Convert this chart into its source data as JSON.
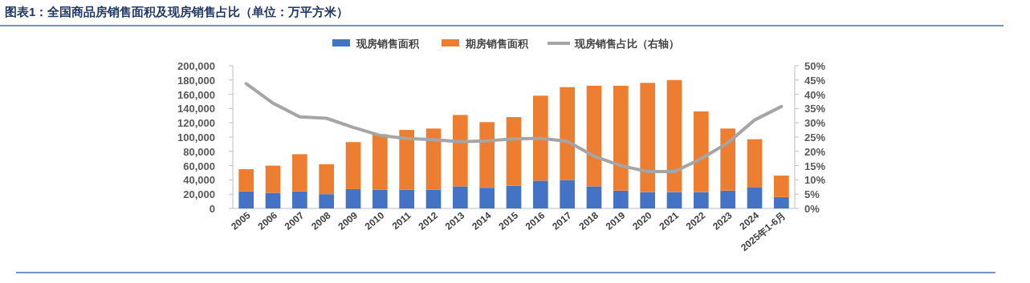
{
  "chart_data": {
    "type": "bar",
    "title": "图表1：全国商品房销售面积及现房销售占比（单位：万平方米）",
    "categories": [
      "2005",
      "2006",
      "2007",
      "2008",
      "2009",
      "2010",
      "2011",
      "2012",
      "2013",
      "2014",
      "2015",
      "2016",
      "2017",
      "2018",
      "2019",
      "2020",
      "2021",
      "2022",
      "2023",
      "2024",
      "2025年1-6月"
    ],
    "stacked": true,
    "legend": "top",
    "series": [
      {
        "name": "现房销售面积",
        "color": "#4472c4",
        "values": [
          24000,
          22000,
          24000,
          20000,
          27000,
          26000,
          26000,
          26000,
          31000,
          29000,
          32000,
          39000,
          40000,
          31000,
          25000,
          23000,
          23000,
          23000,
          25000,
          30000,
          16000
        ]
      },
      {
        "name": "期房销售面积",
        "color": "#ed7d31",
        "values": [
          31000,
          38000,
          52000,
          42000,
          66000,
          78000,
          84000,
          86000,
          100000,
          92000,
          96000,
          119000,
          130000,
          141000,
          147000,
          153000,
          157000,
          113000,
          87000,
          67000,
          30000
        ]
      },
      {
        "name": "现房销售占比（右轴）",
        "type": "line",
        "axis": "y2",
        "color": "#a5a5a5",
        "values": [
          43.7,
          36.9,
          32.1,
          31.6,
          28.4,
          25.6,
          24.5,
          24.1,
          23.4,
          23.7,
          24.4,
          24.6,
          23.5,
          18.3,
          15.0,
          12.9,
          12.9,
          17.4,
          23.0,
          31.0,
          35.7
        ]
      }
    ],
    "ylim": [
      0,
      200000
    ],
    "yticks": [
      0,
      {
        "value": 20000,
        "label": "20,000"
      },
      {
        "value": 40000,
        "label": "40,000"
      },
      {
        "value": 60000,
        "label": "60,000"
      },
      {
        "value": 80000,
        "label": "80,000"
      },
      {
        "value": 100000,
        "label": "100,000"
      },
      {
        "value": 120000,
        "label": "120,000"
      },
      {
        "value": 140000,
        "label": "140,000"
      },
      {
        "value": 160000,
        "label": "160,000"
      },
      {
        "value": 180000,
        "label": "180,000"
      },
      {
        "value": 200000,
        "label": "200,000"
      }
    ],
    "y2lim": [
      0,
      50
    ],
    "y2ticks": [
      {
        "value": 0,
        "label": "0%"
      },
      {
        "value": 5,
        "label": "5%"
      },
      {
        "value": 10,
        "label": "10%"
      },
      {
        "value": 15,
        "label": "15%"
      },
      {
        "value": 20,
        "label": "20%"
      },
      {
        "value": 25,
        "label": "25%"
      },
      {
        "value": 30,
        "label": "30%"
      },
      {
        "value": 35,
        "label": "35%"
      },
      {
        "value": 40,
        "label": "40%"
      },
      {
        "value": 45,
        "label": "45%"
      },
      {
        "value": 50,
        "label": "50%"
      }
    ]
  }
}
